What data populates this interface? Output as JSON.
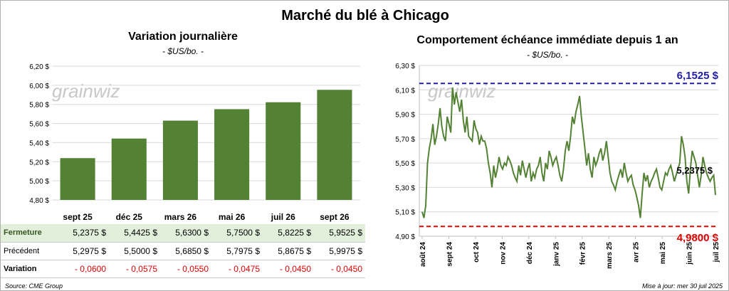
{
  "title": "Marché du blé à Chicago",
  "left": {
    "title": "Variation journalière",
    "unit": "- $US/bo. -",
    "watermark": "grainwiz"
  },
  "right": {
    "title": "Comportement échéance immédiate depuis 1 an",
    "unit": "- $US/bo. -",
    "watermark": "grainwiz",
    "high_label": "6,1525 $",
    "low_label": "4,9800 $",
    "last_label": "5,2375 $"
  },
  "table": {
    "rows": [
      {
        "label": "Fermeture",
        "cells": [
          "5,2375  $",
          "5,4425  $",
          "5,6300  $",
          "5,7500  $",
          "5,8225  $",
          "5,9525  $"
        ]
      },
      {
        "label": "Précédent",
        "cells": [
          "5,2975  $",
          "5,5000  $",
          "5,6850  $",
          "5,7975  $",
          "5,8675  $",
          "5,9975  $"
        ]
      },
      {
        "label": "Variation",
        "cells": [
          "- 0,0600",
          "- 0,0575",
          "- 0,0550",
          "- 0,0475",
          "- 0,0450",
          "- 0,0450"
        ]
      }
    ]
  },
  "footer": {
    "source": "Source: CME Group",
    "updated": "Mise à jour: mer 30 juil 2025"
  },
  "colors": {
    "bar": "#548235",
    "line": "#548235",
    "high": "#1f1fa8",
    "low": "#e00000",
    "grid": "#d9d9d9"
  },
  "chart_data": [
    {
      "type": "bar",
      "title": "Variation journalière",
      "ylabel": "- $US/bo. -",
      "categories": [
        "sept 25",
        "déc 25",
        "mars 26",
        "mai 26",
        "juil 26",
        "sept 26"
      ],
      "values": [
        5.2375,
        5.4425,
        5.63,
        5.75,
        5.8225,
        5.9525
      ],
      "ylim": [
        4.8,
        6.2
      ],
      "yticks": [
        4.8,
        5.0,
        5.2,
        5.4,
        5.6,
        5.8,
        6.0,
        6.2
      ],
      "ytick_labels": [
        "4,80 $",
        "5,00 $",
        "5,20 $",
        "5,40 $",
        "5,60 $",
        "5,80 $",
        "6,00 $",
        "6,20 $"
      ],
      "grid": true
    },
    {
      "type": "line",
      "title": "Comportement échéance immédiate depuis 1 an",
      "ylabel": "- $US/bo. -",
      "ylim": [
        4.9,
        6.3
      ],
      "yticks": [
        4.9,
        5.1,
        5.3,
        5.5,
        5.7,
        5.9,
        6.1,
        6.3
      ],
      "ytick_labels": [
        "4,90 $",
        "5,10 $",
        "5,30 $",
        "5,50 $",
        "5,70 $",
        "5,90 $",
        "6,10 $",
        "6,30 $"
      ],
      "x_labels": [
        "août 24",
        "sept 24",
        "oct 24",
        "nov 24",
        "déc 24",
        "janv 25",
        "févr 25",
        "mars 25",
        "avr 25",
        "mai 25",
        "juin 25",
        "juil 25"
      ],
      "high": 6.1525,
      "low": 4.98,
      "last": 5.2375,
      "values": [
        5.1,
        5.05,
        5.15,
        5.5,
        5.62,
        5.7,
        5.82,
        5.65,
        5.72,
        5.82,
        5.95,
        5.8,
        5.72,
        5.68,
        5.88,
        5.82,
        5.75,
        6.12,
        5.98,
        6.08,
        6.0,
        5.92,
        6.02,
        5.85,
        5.75,
        5.88,
        5.72,
        5.7,
        5.68,
        5.85,
        5.78,
        5.75,
        5.65,
        5.72,
        5.68,
        5.68,
        5.62,
        5.5,
        5.42,
        5.3,
        5.48,
        5.38,
        5.45,
        5.55,
        5.48,
        5.45,
        5.5,
        5.48,
        5.55,
        5.52,
        5.48,
        5.42,
        5.38,
        5.35,
        5.48,
        5.4,
        5.52,
        5.45,
        5.38,
        5.45,
        5.5,
        5.35,
        5.42,
        5.38,
        5.45,
        5.48,
        5.55,
        5.42,
        5.35,
        5.5,
        5.45,
        5.6,
        5.55,
        5.48,
        5.52,
        5.55,
        5.48,
        5.4,
        5.35,
        5.45,
        5.6,
        5.68,
        5.6,
        5.72,
        5.88,
        5.82,
        5.92,
        5.98,
        6.05,
        5.88,
        5.75,
        5.62,
        5.48,
        5.58,
        5.45,
        5.38,
        5.55,
        5.48,
        5.52,
        5.58,
        5.62,
        5.52,
        5.58,
        5.68,
        5.55,
        5.42,
        5.35,
        5.32,
        5.28,
        5.35,
        5.4,
        5.45,
        5.38,
        5.5,
        5.42,
        5.35,
        5.38,
        5.4,
        5.32,
        5.28,
        5.22,
        5.15,
        5.05,
        5.25,
        5.42,
        5.35,
        5.4,
        5.3,
        5.35,
        5.38,
        5.42,
        5.45,
        5.38,
        5.3,
        5.28,
        5.35,
        5.42,
        5.4,
        5.45,
        5.48,
        5.42,
        5.35,
        5.4,
        5.45,
        5.5,
        5.72,
        5.65,
        5.55,
        5.35,
        5.25,
        5.45,
        5.6,
        5.55,
        5.5,
        5.4,
        5.3,
        5.4,
        5.55,
        5.48,
        5.42,
        5.38,
        5.35,
        5.38,
        5.4,
        5.2375
      ]
    }
  ]
}
